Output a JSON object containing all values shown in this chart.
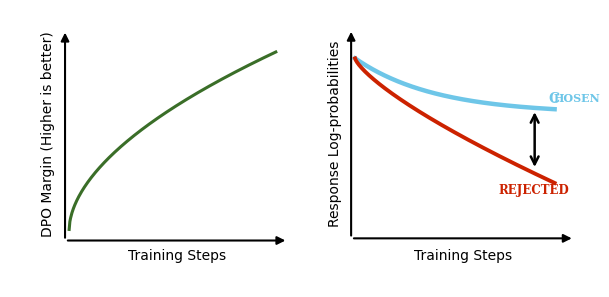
{
  "left_xlabel": "Training Steps",
  "left_ylabel": "DPO Margin (Higher is better)",
  "right_xlabel": "Training Steps",
  "right_ylabel": "Response Log-probabilities",
  "green_color": "#3a6e28",
  "chosen_color": "#6ec6e8",
  "rejected_color": "#cc2200",
  "text_color_chosen": "#6ec6e8",
  "text_color_rejected": "#cc2200",
  "background_color": "#ffffff",
  "label_fontsize": 10
}
